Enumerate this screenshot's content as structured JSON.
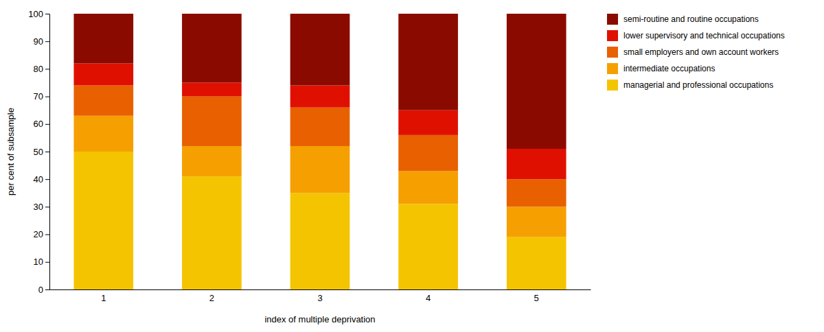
{
  "chart_data": {
    "type": "bar",
    "stacked": true,
    "xlabel": "index of multiple deprivation",
    "ylabel": "per cent of subsample",
    "categories": [
      "1",
      "2",
      "3",
      "4",
      "5"
    ],
    "series": [
      {
        "name": "managerial and professional occupations",
        "color": "#F5C400",
        "values": [
          50,
          41,
          35,
          31,
          19
        ]
      },
      {
        "name": "intermediate occupations",
        "color": "#F5A000",
        "values": [
          13,
          11,
          17,
          12,
          11
        ]
      },
      {
        "name": "small employers and own account workers",
        "color": "#E86000",
        "values": [
          11,
          18,
          14,
          13,
          10
        ]
      },
      {
        "name": "lower supervisory and technical occupations",
        "color": "#E01000",
        "values": [
          8,
          5,
          8,
          9,
          11
        ]
      },
      {
        "name": "semi-routine and routine occupations",
        "color": "#8B0A00",
        "values": [
          18,
          25,
          26,
          35,
          49
        ]
      }
    ],
    "ylim": [
      0,
      100
    ],
    "yticks": [
      0,
      10,
      20,
      30,
      40,
      50,
      60,
      70,
      80,
      90,
      100
    ],
    "grid": false,
    "legend": "right"
  }
}
